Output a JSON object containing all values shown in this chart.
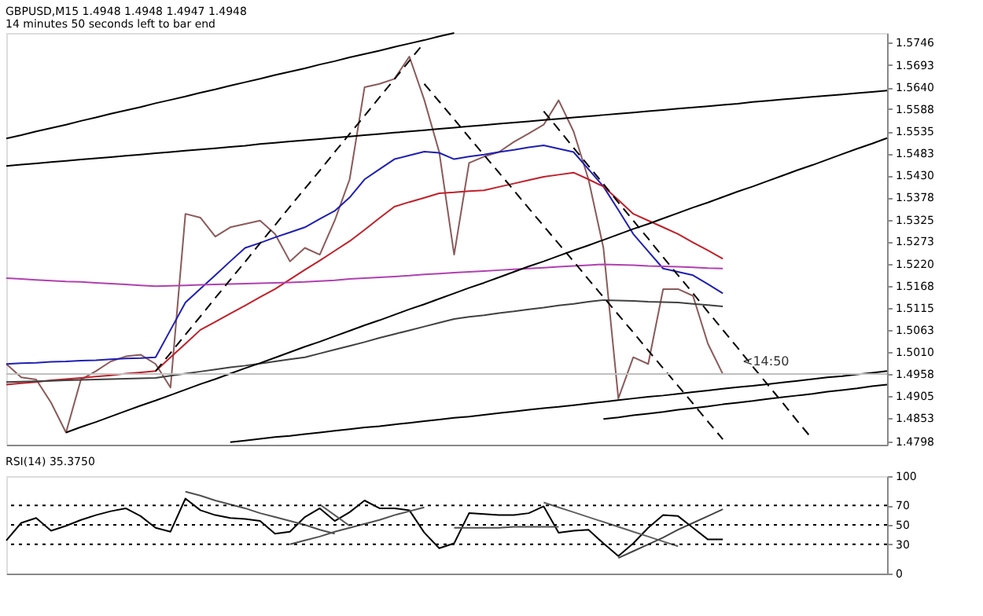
{
  "chart_data": [
    {
      "type": "line",
      "title": "GBPUSD,M15  1.4948 1.4948 1.4947 1.4948",
      "subtitle": "14 minutes 50 seconds left to bar end",
      "categories": [
        null,
        null,
        null,
        null,
        null,
        null,
        null,
        null,
        null,
        null,
        null,
        null,
        null,
        null,
        null,
        null,
        null,
        null,
        null,
        null,
        null,
        null,
        null,
        null,
        null,
        null,
        null,
        null,
        null,
        null,
        null,
        null,
        null,
        null,
        null,
        null,
        null,
        null,
        null,
        null,
        null,
        null,
        null,
        null,
        null,
        null,
        null,
        null,
        null,
        null,
        null,
        null,
        null,
        null,
        null,
        null,
        null,
        null,
        null,
        null
      ],
      "ylim": [
        1.479,
        1.5769
      ],
      "yticks": [
        1.5746,
        1.5693,
        {
          "value": 1.564,
          "label": "1.5640"
        },
        1.5588,
        1.5535,
        1.5483,
        {
          "value": 1.543,
          "label": "1.5430"
        },
        1.5378,
        1.5325,
        1.5273,
        {
          "value": 1.522,
          "label": "1.5220"
        },
        1.5168,
        1.5115,
        1.5063,
        {
          "value": 1.501,
          "label": "1.5010"
        },
        1.4958,
        1.4905,
        1.4853,
        1.4798
      ],
      "annotations": [
        "<14:50"
      ],
      "tick_labels": "y",
      "grid": false,
      "marker": "none",
      "ref_lines": [
        {
          "axis": "y",
          "value": 1.4958,
          "color": "#c0c0c0",
          "line_style": "solid"
        }
      ],
      "series": [
        {
          "color": "#8b5a5a",
          "values": [
            1.4982,
            1.495,
            1.4945,
            1.489,
            1.4819,
            1.4945,
            1.4965,
            1.4988,
            1.5,
            1.5004,
            1.4982,
            1.4926,
            1.5339,
            1.533,
            1.5285,
            1.5307,
            1.5315,
            1.5323,
            1.5291,
            1.5226,
            1.5258,
            1.5242,
            1.5323,
            1.5421,
            1.564,
            1.5648,
            1.566,
            1.5713,
            1.561,
            1.5486,
            1.5242,
            1.546,
            1.5475,
            1.5486,
            1.551,
            1.553,
            1.5551,
            1.5609,
            1.5535,
            1.5421,
            1.5258,
            1.49,
            1.4998,
            1.4982,
            1.516,
            1.516,
            1.5144,
            1.503,
            1.4958,
            null,
            null,
            null,
            null,
            null,
            null,
            null,
            null,
            null,
            null,
            null
          ]
        },
        {
          "color": "#1f1fb4",
          "values": [
            1.4982,
            1.4984,
            1.4985,
            1.4987,
            1.4988,
            1.499,
            1.4991,
            1.4993,
            1.4995,
            1.4996,
            1.4998,
            1.5063,
            1.5128,
            1.5161,
            1.5193,
            1.5226,
            1.5258,
            1.527,
            1.5283,
            1.5295,
            1.5307,
            1.5327,
            1.5346,
            1.5378,
            1.5421,
            1.5445,
            1.5469,
            1.5478,
            1.5487,
            1.5484,
            1.5469,
            1.5475,
            1.548,
            1.5486,
            1.5491,
            1.5497,
            1.5502,
            1.5494,
            1.5486,
            1.5445,
            1.5404,
            1.5348,
            1.5291,
            1.525,
            1.5209,
            1.5201,
            1.5193,
            1.5172,
            1.515,
            null,
            null,
            null,
            null,
            null,
            null,
            null,
            null,
            null,
            null,
            null
          ]
        },
        {
          "color": "#c0202a",
          "values": [
            1.4933,
            1.4936,
            1.4939,
            1.4943,
            1.4946,
            1.4949,
            1.4952,
            1.4955,
            1.4959,
            1.4962,
            1.4965,
            1.4998,
            1.503,
            1.5063,
            1.5082,
            1.5102,
            1.5121,
            1.5141,
            1.516,
            1.5183,
            1.5206,
            1.5228,
            1.5251,
            1.5274,
            1.5301,
            1.5329,
            1.5356,
            1.5367,
            1.5377,
            1.5388,
            1.539,
            1.5393,
            1.5395,
            1.5403,
            1.5411,
            1.5419,
            1.5427,
            1.5432,
            1.5437,
            1.5421,
            1.5404,
            1.5372,
            1.5339,
            1.5323,
            1.5307,
            1.5291,
            1.5271,
            1.5252,
            1.5232,
            null,
            null,
            null,
            null,
            null,
            null,
            null,
            null,
            null,
            null,
            null
          ]
        },
        {
          "color": "#b040b0",
          "values": [
            1.5186,
            1.5184,
            1.5182,
            1.518,
            1.5178,
            1.5177,
            1.5175,
            1.5173,
            1.5171,
            1.5169,
            1.5167,
            1.5168,
            1.5169,
            1.517,
            1.5171,
            1.5172,
            1.5173,
            1.5174,
            1.5175,
            1.5176,
            1.5177,
            1.5179,
            1.5181,
            1.5184,
            1.5186,
            1.5188,
            1.519,
            1.5192,
            1.5195,
            1.5197,
            1.5199,
            1.5201,
            1.5203,
            1.5205,
            1.5207,
            1.5209,
            1.5211,
            1.5213,
            1.5215,
            1.5217,
            1.5219,
            1.5218,
            1.5217,
            1.5215,
            1.5214,
            1.5213,
            1.5212,
            1.521,
            1.5209,
            null,
            null,
            null,
            null,
            null,
            null,
            null,
            null,
            null,
            null,
            null
          ]
        },
        {
          "color": "#404040",
          "values": [
            1.4939,
            1.494,
            1.4941,
            1.4942,
            1.4943,
            1.4944,
            1.4945,
            1.4946,
            1.4947,
            1.4948,
            1.4949,
            1.4954,
            1.4959,
            1.4964,
            1.4969,
            1.4974,
            1.4978,
            1.4983,
            1.4988,
            1.4993,
            1.4998,
            1.5007,
            1.5016,
            1.5025,
            1.5034,
            1.5044,
            1.5053,
            1.5062,
            1.5071,
            1.508,
            1.5089,
            1.5094,
            1.5098,
            1.5103,
            1.5107,
            1.5112,
            1.5116,
            1.5121,
            1.5125,
            1.513,
            1.5134,
            1.5133,
            1.5132,
            1.513,
            1.5129,
            1.5128,
            1.5125,
            1.5122,
            1.5119,
            null,
            null,
            null,
            null,
            null,
            null,
            null,
            null,
            null,
            null,
            null
          ]
        },
        {
          "color": "#000000",
          "values": [
            1.5453,
            1.5456,
            1.5459,
            1.5462,
            1.5465,
            1.5468,
            1.5471,
            1.5474,
            1.5477,
            1.548,
            1.5483,
            1.5486,
            1.5489,
            1.5492,
            1.5495,
            1.5498,
            1.5501,
            1.5505,
            1.5508,
            1.5511,
            1.5514,
            1.5517,
            1.552,
            1.5523,
            1.5526,
            1.5529,
            1.5532,
            1.5535,
            1.5538,
            1.5541,
            1.5544,
            1.5547,
            1.555,
            1.5553,
            1.5556,
            1.5559,
            1.5562,
            1.5565,
            1.5568,
            1.5571,
            1.5574,
            1.5577,
            1.558,
            1.5583,
            1.5586,
            1.5589,
            1.5592,
            1.5595,
            1.5598,
            1.5601,
            1.5605,
            1.5608,
            1.5611,
            1.5614,
            1.5617,
            1.562,
            1.5623,
            1.5626,
            1.5629,
            1.5632
          ]
        },
        {
          "color": "#000000",
          "values": [
            null,
            null,
            null,
            null,
            null,
            null,
            null,
            null,
            null,
            null,
            null,
            null,
            null,
            null,
            null,
            1.4796,
            1.48,
            1.4804,
            1.4808,
            1.4811,
            1.4815,
            1.4819,
            1.4823,
            1.4827,
            1.4831,
            1.4834,
            1.4838,
            1.4842,
            1.4846,
            1.485,
            1.4854,
            1.4857,
            1.4861,
            1.4865,
            1.4869,
            1.4873,
            1.4877,
            1.488,
            1.4884,
            1.4888,
            1.4892,
            1.4896,
            1.49,
            1.4904,
            1.4907,
            1.4911,
            1.4915,
            1.4919,
            1.4923,
            1.4927,
            1.493,
            1.4934,
            1.4938,
            1.4942,
            1.4946,
            1.495,
            1.4953,
            1.4957,
            1.4961,
            1.4965
          ]
        },
        {
          "color": "#000000",
          "values": [
            null,
            null,
            null,
            null,
            null,
            null,
            null,
            null,
            null,
            null,
            null,
            null,
            null,
            null,
            null,
            null,
            null,
            null,
            null,
            null,
            null,
            null,
            null,
            null,
            null,
            null,
            null,
            null,
            null,
            null,
            null,
            null,
            null,
            null,
            null,
            null,
            null,
            null,
            null,
            null,
            1.4851,
            1.4855,
            1.486,
            1.4864,
            1.4868,
            1.4873,
            1.4877,
            1.4881,
            1.4886,
            1.489,
            1.4894,
            1.4899,
            1.4903,
            1.4907,
            1.4911,
            1.4916,
            1.492,
            1.4924,
            1.4929,
            1.4933
          ]
        },
        {
          "color": "#000000",
          "values": [
            null,
            null,
            null,
            null,
            1.4819,
            1.4832,
            1.4844,
            1.4857,
            1.487,
            1.4883,
            1.4895,
            1.4908,
            1.4921,
            1.4934,
            1.4946,
            1.4959,
            1.4972,
            1.4984,
            1.4997,
            1.501,
            1.5023,
            1.5035,
            1.5048,
            1.5061,
            1.5074,
            1.5086,
            1.5099,
            1.5112,
            1.5124,
            1.5137,
            1.515,
            1.5163,
            1.5175,
            1.5188,
            1.5201,
            1.5214,
            1.5226,
            1.5239,
            1.5252,
            1.5264,
            1.5277,
            1.529,
            1.5303,
            1.5315,
            1.5328,
            1.5341,
            1.5354,
            1.5366,
            1.5379,
            1.5392,
            1.5404,
            1.5417,
            1.543,
            1.5443,
            1.5455,
            1.5468,
            1.5481,
            1.5494,
            1.5506,
            1.5519
          ]
        },
        {
          "color": "#000000",
          "values": [
            1.5518,
            1.5526,
            1.5535,
            1.5543,
            1.5551,
            1.556,
            1.5568,
            1.5577,
            1.5585,
            1.5593,
            1.5602,
            1.561,
            1.5618,
            1.5627,
            1.5635,
            1.5644,
            1.5652,
            1.566,
            1.5669,
            1.5677,
            1.5685,
            1.5694,
            1.5702,
            1.5711,
            1.5719,
            1.5727,
            1.5736,
            1.5744,
            1.5752,
            1.5761,
            1.5769,
            null,
            null,
            null,
            null,
            null,
            null,
            null,
            null,
            null,
            null,
            null,
            null,
            null,
            null,
            null,
            null,
            null,
            null,
            null,
            null,
            null,
            null,
            null,
            null,
            null,
            null,
            null,
            null,
            null
          ]
        },
        {
          "color": "#000000",
          "line_style": "dashed",
          "values": [
            null,
            null,
            null,
            null,
            null,
            null,
            null,
            null,
            null,
            null,
            1.4965,
            1.5008,
            1.5052,
            1.5095,
            1.5139,
            1.5182,
            1.5225,
            1.5269,
            1.5312,
            1.5356,
            1.5399,
            1.5442,
            1.5486,
            1.5529,
            1.5572,
            1.5616,
            1.5659,
            1.5703,
            1.5746,
            null,
            null,
            null,
            null,
            null,
            null,
            null,
            null,
            null,
            null,
            null,
            null,
            null,
            null,
            null,
            null,
            null,
            null,
            null,
            null,
            null,
            null,
            null,
            null,
            null,
            null,
            null,
            null,
            null,
            null,
            null
          ]
        },
        {
          "color": "#000000",
          "line_style": "dashed",
          "values": [
            null,
            null,
            null,
            null,
            null,
            null,
            null,
            null,
            null,
            null,
            null,
            null,
            null,
            null,
            null,
            null,
            null,
            null,
            null,
            null,
            null,
            null,
            null,
            null,
            null,
            null,
            null,
            null,
            1.5648,
            1.5606,
            1.5564,
            1.5521,
            1.5479,
            1.5437,
            1.5395,
            1.5352,
            1.531,
            1.5268,
            1.5226,
            1.5183,
            1.5141,
            1.5099,
            1.5057,
            1.5014,
            1.4972,
            1.493,
            1.4888,
            1.4845,
            1.4803,
            null,
            null,
            null,
            null,
            null,
            null,
            null,
            null,
            null,
            null,
            null
          ]
        },
        {
          "color": "#000000",
          "line_style": "dashed",
          "values": [
            null,
            null,
            null,
            null,
            null,
            null,
            null,
            null,
            null,
            null,
            null,
            null,
            null,
            null,
            null,
            null,
            null,
            null,
            null,
            null,
            null,
            null,
            null,
            null,
            null,
            null,
            null,
            null,
            null,
            null,
            null,
            null,
            null,
            null,
            null,
            null,
            1.5583,
            1.554,
            1.5496,
            1.5453,
            1.541,
            1.5366,
            1.5323,
            1.528,
            1.5236,
            1.5193,
            1.515,
            1.5106,
            1.5063,
            1.502,
            1.4976,
            1.4933,
            1.489,
            1.4846,
            1.4803,
            null,
            null,
            null,
            null,
            null
          ]
        }
      ]
    },
    {
      "type": "line",
      "title": "RSI(14) 35.3750",
      "categories": [
        null,
        null,
        null,
        null,
        null,
        null,
        null,
        null,
        null,
        null,
        null,
        null,
        null,
        null,
        null,
        null,
        null,
        null,
        null,
        null,
        null,
        null,
        null,
        null,
        null,
        null,
        null,
        null,
        null,
        null,
        null,
        null,
        null,
        null,
        null,
        null,
        null,
        null,
        null,
        null,
        null,
        null,
        null,
        null,
        null,
        null,
        null,
        null,
        null,
        null,
        null,
        null,
        null,
        null,
        null,
        null,
        null,
        null,
        null,
        null
      ],
      "ylim": [
        0,
        100
      ],
      "yticks": [
        0,
        30,
        50,
        70,
        100
      ],
      "tick_labels": "y",
      "grid": false,
      "marker": "none",
      "ref_lines": [
        {
          "axis": "y",
          "value": 30,
          "color": "#000000",
          "line_style": "dotted"
        },
        {
          "axis": "y",
          "value": 50,
          "color": "#000000",
          "line_style": "dotted"
        },
        {
          "axis": "y",
          "value": 70,
          "color": "#000000",
          "line_style": "dotted"
        }
      ],
      "series": [
        {
          "color": "#000000",
          "values": [
            34,
            52,
            57,
            44,
            49,
            55,
            60,
            64,
            67,
            59,
            47,
            43,
            77,
            65,
            60,
            57,
            56,
            54,
            41,
            43,
            58,
            67,
            54,
            63,
            75,
            67,
            67,
            65,
            42,
            26,
            31,
            62,
            61,
            60,
            60,
            62,
            69,
            42,
            44,
            45,
            31,
            18,
            31,
            47,
            60,
            59,
            47,
            35,
            35,
            null,
            null,
            null,
            null,
            null,
            null,
            null,
            null,
            null,
            null,
            null
          ]
        },
        {
          "color": "#505050",
          "values": [
            null,
            null,
            null,
            null,
            null,
            null,
            null,
            null,
            null,
            null,
            null,
            null,
            84,
            80,
            75,
            71,
            67,
            62,
            58,
            54,
            50,
            45,
            41,
            null,
            null,
            null,
            null,
            null,
            null,
            null,
            null,
            null,
            null,
            null,
            null,
            null,
            null,
            null,
            null,
            null,
            null,
            null,
            null,
            null,
            null,
            null,
            null,
            null,
            null,
            null,
            null,
            null,
            null,
            null,
            null,
            null,
            null,
            null,
            null,
            null
          ]
        },
        {
          "color": "#505050",
          "values": [
            null,
            null,
            null,
            null,
            null,
            null,
            null,
            null,
            null,
            null,
            null,
            null,
            null,
            null,
            null,
            null,
            null,
            null,
            null,
            30,
            34,
            38,
            43,
            47,
            51,
            55,
            60,
            64,
            68,
            null,
            null,
            null,
            null,
            null,
            null,
            null,
            null,
            null,
            null,
            null,
            null,
            null,
            null,
            null,
            null,
            null,
            null,
            null,
            null,
            null,
            null,
            null,
            null,
            null,
            null,
            null,
            null,
            null,
            null,
            null
          ]
        },
        {
          "color": "#5a5a5a",
          "values": [
            null,
            null,
            null,
            null,
            null,
            null,
            null,
            null,
            null,
            null,
            null,
            null,
            null,
            null,
            null,
            null,
            null,
            null,
            null,
            null,
            null,
            71,
            60,
            49,
            null,
            null,
            null,
            null,
            null,
            null,
            null,
            null,
            null,
            null,
            null,
            null,
            null,
            null,
            null,
            null,
            null,
            null,
            null,
            null,
            null,
            null,
            null,
            null,
            null,
            null,
            null,
            null,
            null,
            null,
            null,
            null,
            null,
            null,
            null,
            null
          ]
        },
        {
          "color": "#505050",
          "values": [
            null,
            null,
            null,
            null,
            null,
            null,
            null,
            null,
            null,
            null,
            null,
            null,
            null,
            null,
            null,
            null,
            null,
            null,
            null,
            null,
            null,
            null,
            null,
            null,
            null,
            null,
            null,
            null,
            null,
            null,
            47,
            47,
            47,
            47,
            48,
            48,
            48,
            48,
            null,
            null,
            null,
            null,
            null,
            null,
            null,
            null,
            null,
            null,
            null,
            null,
            null,
            null,
            null,
            null,
            null,
            null,
            null,
            null,
            null,
            null
          ]
        },
        {
          "color": "#606060",
          "values": [
            null,
            null,
            null,
            null,
            null,
            null,
            null,
            null,
            null,
            null,
            null,
            null,
            null,
            null,
            null,
            null,
            null,
            null,
            null,
            null,
            null,
            null,
            null,
            null,
            null,
            null,
            null,
            null,
            null,
            null,
            null,
            null,
            null,
            null,
            null,
            null,
            73,
            68,
            63,
            58,
            53,
            48,
            43,
            38,
            33,
            28,
            null,
            null,
            null,
            null,
            null,
            null,
            null,
            null,
            null,
            null,
            null,
            null,
            null,
            null
          ]
        },
        {
          "color": "#454545",
          "values": [
            null,
            null,
            null,
            null,
            null,
            null,
            null,
            null,
            null,
            null,
            null,
            null,
            null,
            null,
            null,
            null,
            null,
            null,
            null,
            null,
            null,
            null,
            null,
            null,
            null,
            null,
            null,
            null,
            null,
            null,
            null,
            null,
            null,
            null,
            null,
            null,
            null,
            null,
            null,
            null,
            null,
            16,
            23,
            30,
            37,
            45,
            52,
            59,
            66,
            null,
            null,
            null,
            null,
            null,
            null,
            null,
            null,
            null,
            null,
            null
          ]
        }
      ]
    }
  ]
}
